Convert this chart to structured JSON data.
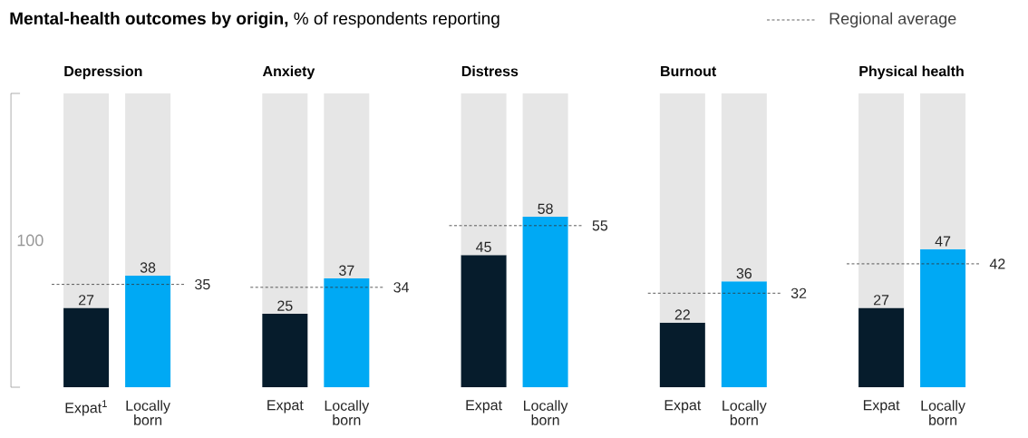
{
  "chart_data": [
    {
      "type": "other",
      "title": "**Mental-health outcomes by origin,** % of respondents reporting",
      "annotations": [
        "Regional average"
      ]
    },
    {
      "type": "bar",
      "title": "Depression",
      "categories": [
        "Expat$^{1}$",
        "Locally born"
      ],
      "stacked": true,
      "ylim": [
        0,
        100
      ],
      "annotations": [
        "100"
      ],
      "series": [
        {
          "colors": [
            "#061c2c",
            "#00a9f4"
          ],
          "values": [
            27,
            38
          ],
          "value_labels": [
            "27",
            "38"
          ]
        },
        {
          "color": "#e6e6e6",
          "values": [
            73,
            62
          ]
        }
      ],
      "ref_lines": [
        {
          "axis": "y",
          "value": 35,
          "label": "35",
          "color": "#333333",
          "line_style": "dashed"
        }
      ]
    },
    {
      "type": "bar",
      "title": "Anxiety",
      "categories": [
        "Expat",
        "Locally born"
      ],
      "stacked": true,
      "ylim": [
        0,
        100
      ],
      "series": [
        {
          "colors": [
            "#061c2c",
            "#00a9f4"
          ],
          "values": [
            25,
            37
          ],
          "value_labels": [
            "25",
            "37"
          ]
        },
        {
          "color": "#e6e6e6",
          "values": [
            75,
            63
          ]
        }
      ],
      "ref_lines": [
        {
          "axis": "y",
          "value": 34,
          "label": "34",
          "color": "#333333",
          "line_style": "dashed"
        }
      ]
    },
    {
      "type": "bar",
      "title": "Distress",
      "categories": [
        "Expat",
        "Locally born"
      ],
      "stacked": true,
      "ylim": [
        0,
        100
      ],
      "series": [
        {
          "colors": [
            "#061c2c",
            "#00a9f4"
          ],
          "values": [
            45,
            58
          ],
          "value_labels": [
            "45",
            "58"
          ]
        },
        {
          "color": "#e6e6e6",
          "values": [
            55,
            42
          ]
        }
      ],
      "ref_lines": [
        {
          "axis": "y",
          "value": 55,
          "label": "55",
          "color": "#333333",
          "line_style": "dashed"
        }
      ]
    },
    {
      "type": "bar",
      "title": "Burnout",
      "categories": [
        "Expat",
        "Locally born"
      ],
      "stacked": true,
      "ylim": [
        0,
        100
      ],
      "series": [
        {
          "colors": [
            "#061c2c",
            "#00a9f4"
          ],
          "values": [
            22,
            36
          ],
          "value_labels": [
            "22",
            "36"
          ]
        },
        {
          "color": "#e6e6e6",
          "values": [
            78,
            64
          ]
        }
      ],
      "ref_lines": [
        {
          "axis": "y",
          "value": 32,
          "label": "32",
          "color": "#333333",
          "line_style": "dashed"
        }
      ]
    },
    {
      "type": "bar",
      "title": "Physical health",
      "categories": [
        "Expat",
        "Locally born"
      ],
      "stacked": true,
      "ylim": [
        0,
        100
      ],
      "series": [
        {
          "colors": [
            "#061c2c",
            "#00a9f4"
          ],
          "values": [
            27,
            47
          ],
          "value_labels": [
            "27",
            "47"
          ]
        },
        {
          "color": "#e6e6e6",
          "values": [
            73,
            53
          ]
        }
      ],
      "ref_lines": [
        {
          "axis": "y",
          "value": 42,
          "label": "42",
          "color": "#333333",
          "line_style": "dashed"
        }
      ]
    }
  ]
}
